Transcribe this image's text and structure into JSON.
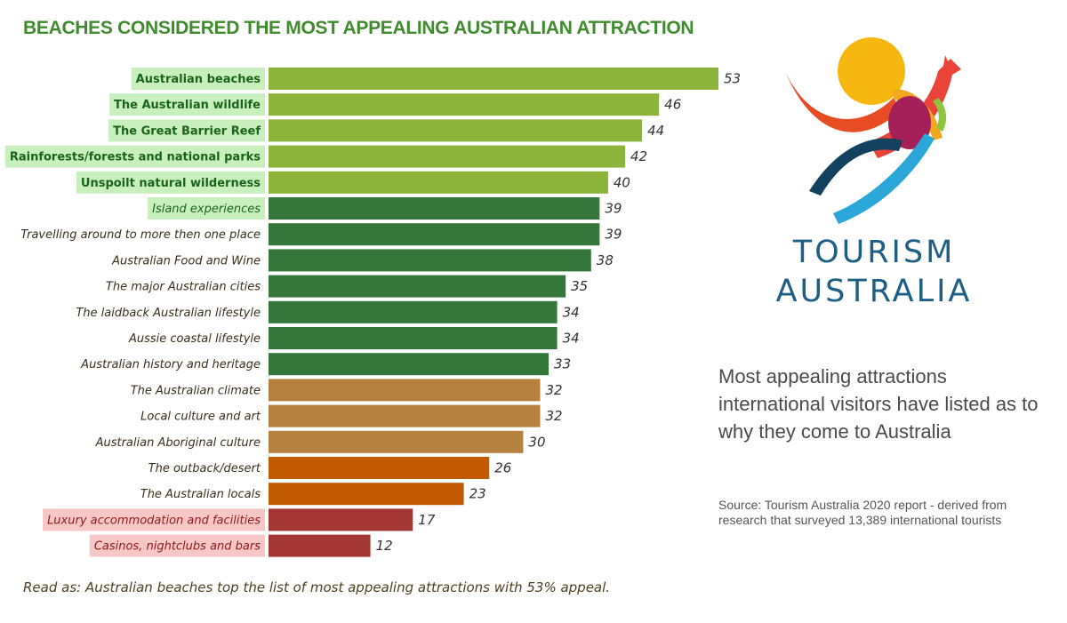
{
  "title": "BEACHES CONSIDERED THE MOST APPEALING AUSTRALIAN ATTRACTION",
  "footnote": "Read as: Australian beaches top the list of most appealing attractions with 53% appeal.",
  "brand": {
    "line1": "TOURISM",
    "line2": "AUSTRALIA"
  },
  "caption": "Most appealing attractions international visitors have listed as to why they come to Australia",
  "source": "Source: Tourism Australia 2020 report - derived from research that surveyed 13,389 international tourists",
  "colors": {
    "light_green": "#8cb33a",
    "dark_green": "#35773a",
    "tan": "#b6813f",
    "orange": "#c15a02",
    "red": "#a33532",
    "label_highlight_green": "#c9efbf",
    "label_highlight_pink": "#f7c6c6",
    "label_text_green": "#1a6418",
    "label_text_red": "#8b1a1a",
    "label_text_default": "#3a2f1a",
    "brand_blue": "#1e5f86"
  },
  "chart_data": {
    "type": "bar",
    "orientation": "horizontal",
    "xlim": [
      0,
      53
    ],
    "grid": false,
    "legend": "none",
    "categories": [
      "Australian beaches",
      "The Australian wildlife",
      "The Great Barrier Reef",
      "Rainforests/forests and national parks",
      "Unspoilt natural wilderness",
      "Island experiences",
      "Travelling around to more then one place",
      "Australian Food and Wine",
      "The major Australian cities",
      "The laidback Australian lifestyle",
      "Aussie coastal lifestyle",
      "Australian history and heritage",
      "The Australian climate",
      "Local culture and art",
      "Australian Aboriginal culture",
      "The outback/desert",
      "The Australian locals",
      "Luxury accommodation and facilities",
      "Casinos, nightclubs and bars"
    ],
    "values": [
      53,
      46,
      44,
      42,
      40,
      39,
      39,
      38,
      35,
      34,
      34,
      33,
      32,
      32,
      30,
      26,
      23,
      17,
      12
    ],
    "bar_colors": [
      "light_green",
      "light_green",
      "light_green",
      "light_green",
      "light_green",
      "dark_green",
      "dark_green",
      "dark_green",
      "dark_green",
      "dark_green",
      "dark_green",
      "dark_green",
      "tan",
      "tan",
      "tan",
      "orange",
      "orange",
      "red",
      "red"
    ],
    "label_highlight": [
      "green",
      "green",
      "green",
      "green",
      "green",
      "green",
      "none",
      "none",
      "none",
      "none",
      "none",
      "none",
      "none",
      "none",
      "none",
      "none",
      "none",
      "pink",
      "pink"
    ],
    "label_bold": [
      true,
      true,
      true,
      true,
      true,
      false,
      false,
      false,
      false,
      false,
      false,
      false,
      false,
      false,
      false,
      false,
      false,
      false,
      false
    ]
  }
}
